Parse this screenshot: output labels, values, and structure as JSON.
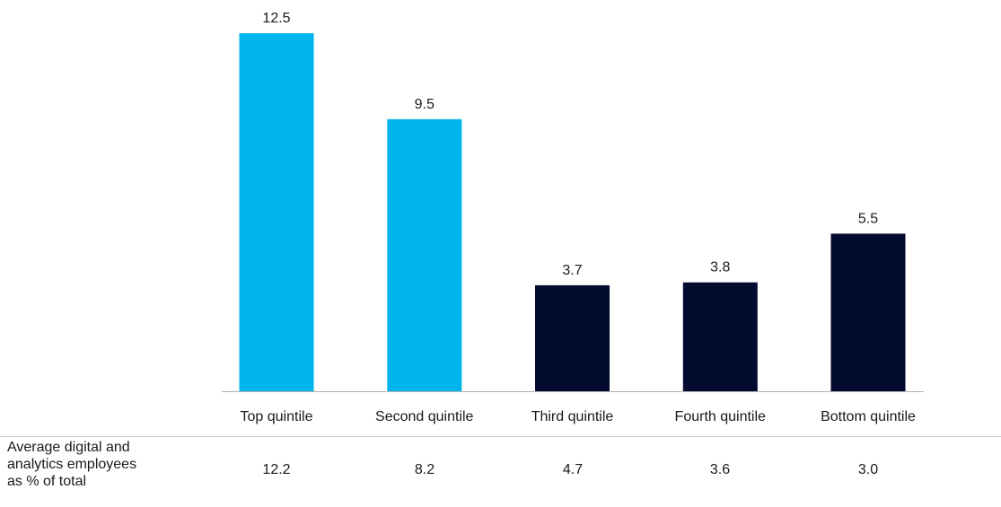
{
  "colors": {
    "highlight": "#00b5ec",
    "dark": "#030b2f",
    "axis": "#b3b3b3",
    "text": "#1a1a1a"
  },
  "chart_data": {
    "type": "bar",
    "categories": [
      "Top quintile",
      "Second quintile",
      "Third quintile",
      "Fourth quintile",
      "Bottom quintile"
    ],
    "values": [
      12.5,
      9.5,
      3.7,
      3.8,
      5.5
    ],
    "value_labels": [
      "12.5",
      "9.5",
      "3.7",
      "3.8",
      "5.5"
    ],
    "bar_colors": [
      "#00b5ec",
      "#00b5ec",
      "#030b2f",
      "#030b2f",
      "#030b2f"
    ],
    "title": "",
    "xlabel": "",
    "ylabel": "",
    "ylim": [
      0,
      12.5
    ],
    "grid": false,
    "legend": "none"
  },
  "table_row": {
    "label_lines": [
      "Average digital and",
      "analytics employees",
      "as % of total"
    ],
    "values": [
      "12.2",
      "8.2",
      "4.7",
      "3.6",
      "3.0"
    ]
  }
}
